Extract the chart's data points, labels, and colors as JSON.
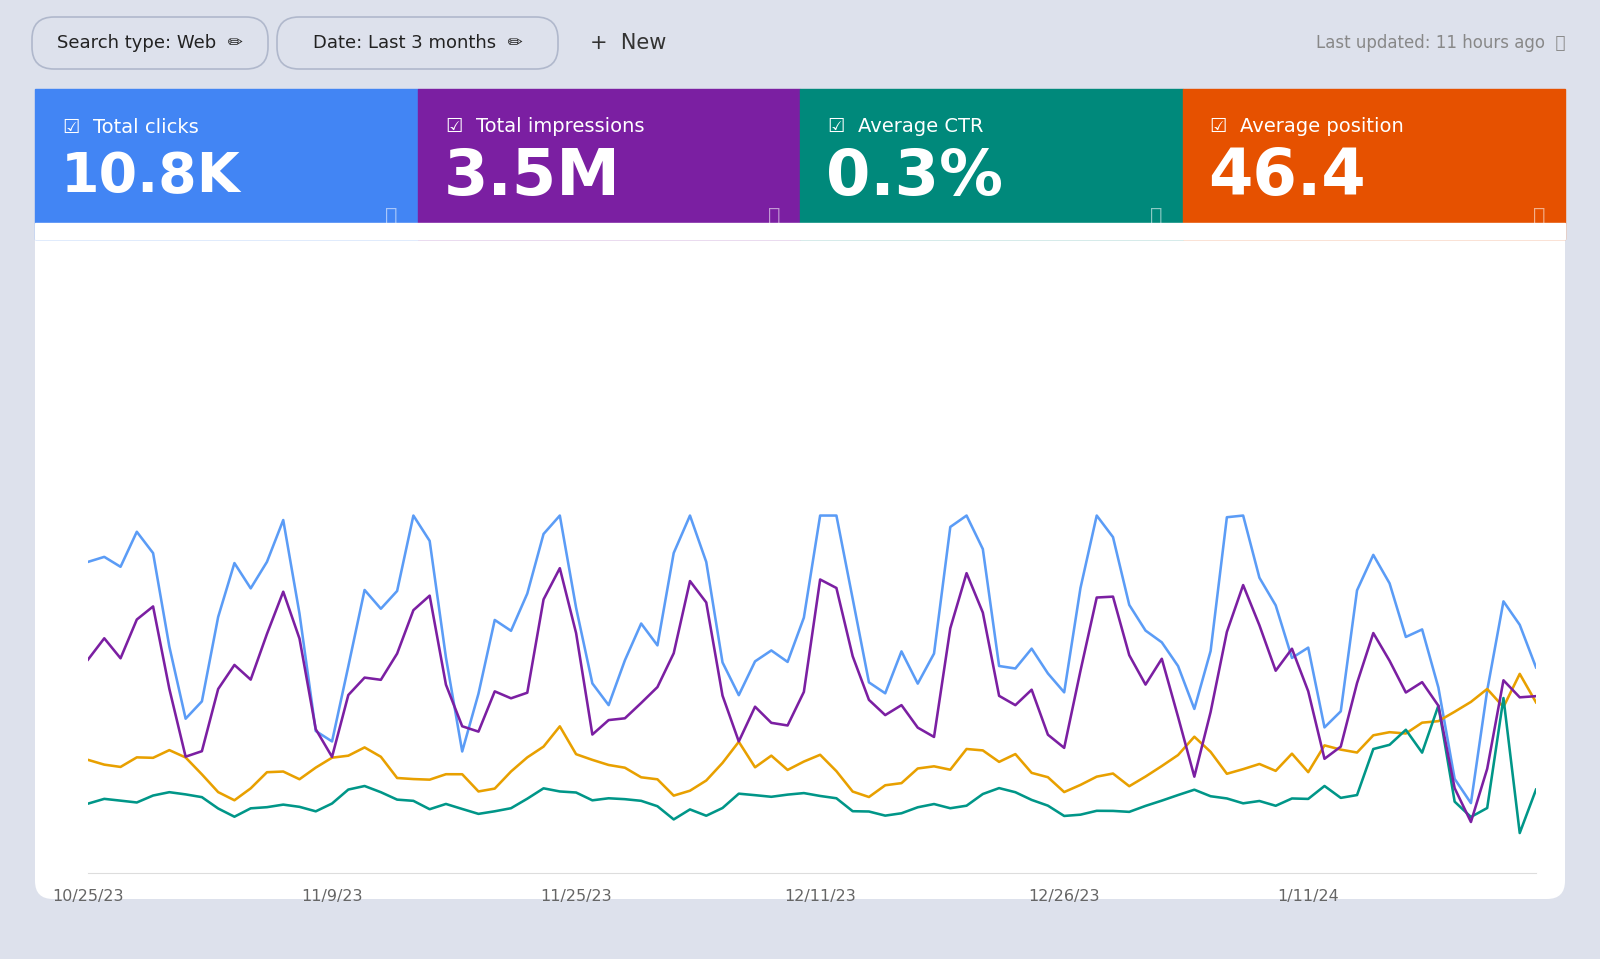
{
  "bg_color": "#dde1ec",
  "card_colors": [
    "#4285f4",
    "#7b1fa2",
    "#00897b",
    "#e65100"
  ],
  "card_labels": [
    "Total clicks",
    "Total impressions",
    "Average CTR",
    "Average position"
  ],
  "card_values": [
    "10.8K",
    "3.5M",
    "0.3%",
    "46.4"
  ],
  "line_colors": [
    "#5b9cf6",
    "#7b1fa2",
    "#e8a000",
    "#009688"
  ],
  "x_labels": [
    "10/25/23",
    "11/9/23",
    "11/25/23",
    "12/11/23",
    "12/26/23",
    "1/11/24"
  ],
  "chart_bg": "#ffffff",
  "tick_color": "#666666",
  "btn1_text": "Search type: Web  ✏",
  "btn2_text": "Date: Last 3 months  ✏",
  "btn3_text": "+  New",
  "last_updated_text": "Last updated: 11 hours ago",
  "question_mark": "?",
  "checkbox": "☑"
}
